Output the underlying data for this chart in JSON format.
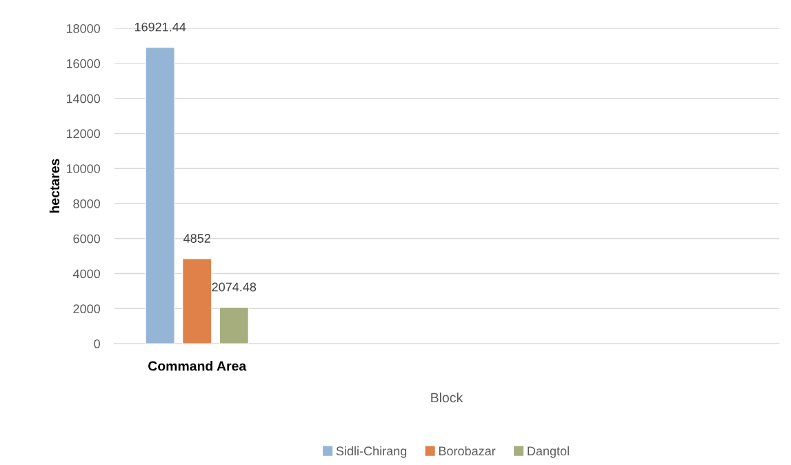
{
  "chart_data": {
    "type": "bar",
    "xlabel": "Block",
    "ylabel": "hectares",
    "categories": [
      "Command Area",
      null,
      null,
      null
    ],
    "series": [
      {
        "name": "Sidli-Chirang",
        "color": "#95b5d6",
        "values": [
          16921.44,
          null,
          null,
          null
        ]
      },
      {
        "name": "Borobazar",
        "color": "#e0814a",
        "values": [
          4852,
          null,
          null,
          null
        ]
      },
      {
        "name": "Dangtol",
        "color": "#a6ae7e",
        "values": [
          2074.48,
          null,
          null,
          null
        ]
      }
    ],
    "ylim": [
      0,
      18000
    ],
    "yticks": [
      0,
      2000,
      4000,
      6000,
      8000,
      10000,
      12000,
      14000,
      16000,
      18000
    ],
    "grid": "y",
    "legend": "bottom",
    "data_labels": true
  }
}
